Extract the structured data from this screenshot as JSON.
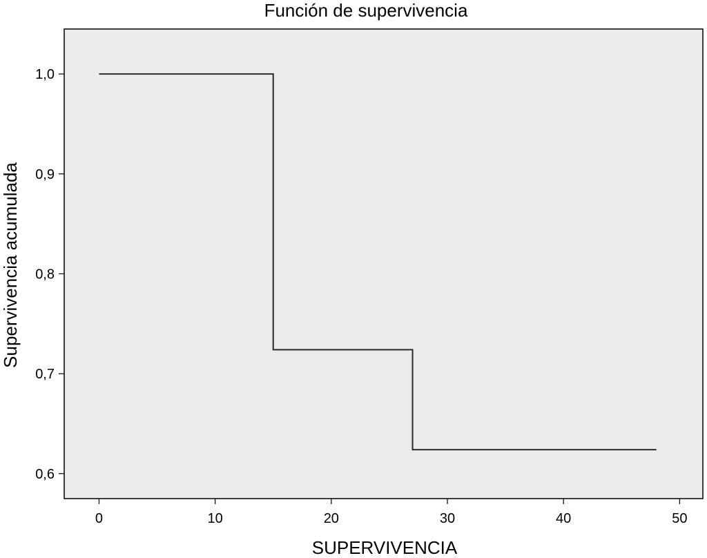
{
  "chart_data": {
    "type": "line",
    "title": "Función de supervivencia",
    "xlabel": "SUPERVIVENCIA",
    "ylabel": "Supervivencia acumulada",
    "xlim": [
      -3,
      52
    ],
    "ylim": [
      0.575,
      1.045
    ],
    "x_ticks": [
      0,
      10,
      20,
      30,
      40,
      50
    ],
    "x_tick_labels": [
      "0",
      "10",
      "20",
      "30",
      "40",
      "50"
    ],
    "y_ticks": [
      0.6,
      0.7,
      0.8,
      0.9,
      1.0
    ],
    "y_tick_labels": [
      "0,6",
      "0,7",
      "0,8",
      "0,9",
      "1,0"
    ],
    "grid": false,
    "step": true,
    "series": [
      {
        "x": [
          0,
          15,
          27,
          48
        ],
        "y": [
          1.0,
          0.724,
          0.624,
          0.624
        ]
      }
    ],
    "colors": {
      "plot_background": "#ebebeb",
      "line": "#2a2a2a",
      "frame": "#000000"
    }
  }
}
